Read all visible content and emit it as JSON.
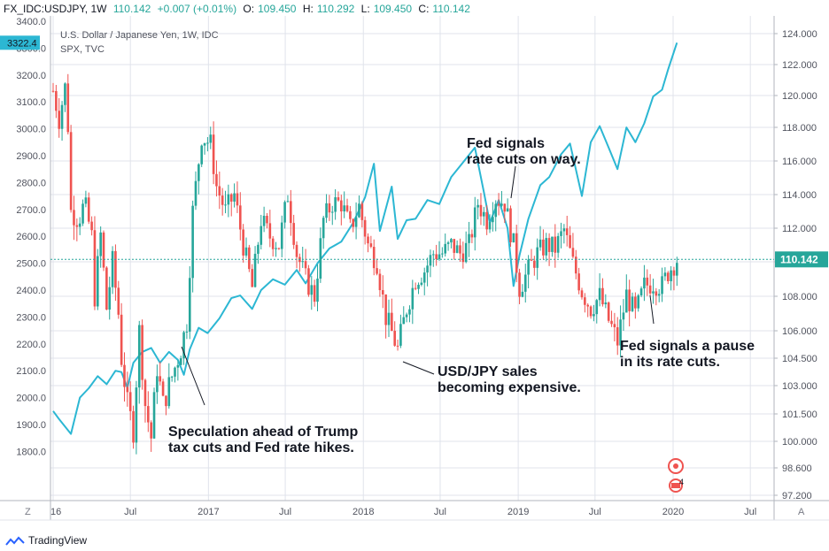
{
  "header": {
    "symbol": "FX_IDC:USDJPY, 1W",
    "last": "110.142",
    "change": "+0.007 (+0.01%)",
    "open_label": "O:",
    "open": "109.450",
    "high_label": "H:",
    "high": "110.292",
    "low_label": "L:",
    "low": "109.450",
    "close_label": "C:",
    "close": "110.142"
  },
  "legend": {
    "main_series": "U.S. Dollar / Japanese Yen, 1W, IDC",
    "compare_series": "SPX, TVC"
  },
  "colors": {
    "up": "#26a69a",
    "down": "#ef5350",
    "compare_line": "#2cb7d3",
    "price_line": "#26a69a",
    "grid": "#e0e3eb"
  },
  "chart_data": {
    "type": "candlestick",
    "x_ticks": [
      "16",
      "Jul",
      "2017",
      "Jul",
      "2018",
      "Jul",
      "2019",
      "Jul",
      "2020",
      "Jul"
    ],
    "right_axis": {
      "label_values": [
        "124.000",
        "122.000",
        "120.000",
        "118.000",
        "116.000",
        "114.000",
        "112.000",
        "110.000",
        "108.000",
        "106.000",
        "104.500",
        "103.000",
        "101.500",
        "100.000",
        "98.600",
        "97.200"
      ],
      "current_price": "110.142"
    },
    "left_axis": {
      "label_values": [
        "3400.0",
        "3300.0",
        "3200.0",
        "3100.0",
        "3000.0",
        "2900.0",
        "2800.0",
        "2700.0",
        "2600.0",
        "2500.0",
        "2400.0",
        "2300.0",
        "2200.0",
        "2100.0",
        "2000.0",
        "1900.0",
        "1800.0"
      ],
      "current_value": "3322.4"
    },
    "usdjpy_path": [
      [
        "2016-01-01",
        120.3
      ],
      [
        "2016-01-15",
        118.5
      ],
      [
        "2016-02-01",
        121.0
      ],
      [
        "2016-02-12",
        113.0
      ],
      [
        "2016-03-01",
        112.5
      ],
      [
        "2016-03-15",
        113.5
      ],
      [
        "2016-04-01",
        111.5
      ],
      [
        "2016-04-08",
        108.0
      ],
      [
        "2016-04-22",
        111.6
      ],
      [
        "2016-05-06",
        107.3
      ],
      [
        "2016-05-20",
        110.0
      ],
      [
        "2016-06-03",
        107.0
      ],
      [
        "2016-06-10",
        104.5
      ],
      [
        "2016-06-24",
        102.0
      ],
      [
        "2016-07-08",
        100.6
      ],
      [
        "2016-07-22",
        106.0
      ],
      [
        "2016-08-05",
        102.0
      ],
      [
        "2016-08-19",
        100.2
      ],
      [
        "2016-09-02",
        104.0
      ],
      [
        "2016-09-16",
        102.0
      ],
      [
        "2016-10-07",
        103.5
      ],
      [
        "2016-10-28",
        105.0
      ],
      [
        "2016-11-11",
        106.5
      ],
      [
        "2016-11-25",
        113.0
      ],
      [
        "2016-12-16",
        117.5
      ],
      [
        "2017-01-06",
        117.0
      ],
      [
        "2017-01-20",
        114.5
      ],
      [
        "2017-02-10",
        113.0
      ],
      [
        "2017-03-03",
        114.0
      ],
      [
        "2017-03-24",
        111.0
      ],
      [
        "2017-04-14",
        108.5
      ],
      [
        "2017-05-05",
        112.5
      ],
      [
        "2017-05-26",
        111.5
      ],
      [
        "2017-06-16",
        111.0
      ],
      [
        "2017-07-07",
        114.0
      ],
      [
        "2017-07-28",
        110.5
      ],
      [
        "2017-08-18",
        109.0
      ],
      [
        "2017-09-08",
        108.0
      ],
      [
        "2017-09-29",
        112.5
      ],
      [
        "2017-10-20",
        113.5
      ],
      [
        "2017-11-10",
        113.5
      ],
      [
        "2017-12-01",
        112.0
      ],
      [
        "2017-12-22",
        113.3
      ],
      [
        "2018-01-12",
        111.0
      ],
      [
        "2018-02-02",
        110.0
      ],
      [
        "2018-02-23",
        106.8
      ],
      [
        "2018-03-23",
        105.0
      ],
      [
        "2018-04-13",
        107.3
      ],
      [
        "2018-05-04",
        109.0
      ],
      [
        "2018-05-25",
        109.5
      ],
      [
        "2018-06-15",
        110.5
      ],
      [
        "2018-07-06",
        110.5
      ],
      [
        "2018-07-27",
        111.0
      ],
      [
        "2018-08-17",
        110.5
      ],
      [
        "2018-09-07",
        111.0
      ],
      [
        "2018-09-28",
        113.5
      ],
      [
        "2018-10-19",
        112.5
      ],
      [
        "2018-11-09",
        113.8
      ],
      [
        "2018-11-30",
        113.5
      ],
      [
        "2018-12-21",
        111.0
      ],
      [
        "2019-01-04",
        108.5
      ],
      [
        "2019-01-25",
        109.5
      ],
      [
        "2019-02-15",
        110.5
      ],
      [
        "2019-03-08",
        111.0
      ],
      [
        "2019-03-29",
        110.8
      ],
      [
        "2019-04-19",
        111.9
      ],
      [
        "2019-05-10",
        109.9
      ],
      [
        "2019-05-31",
        108.3
      ],
      [
        "2019-06-21",
        107.3
      ],
      [
        "2019-07-12",
        108.0
      ],
      [
        "2019-08-02",
        106.6
      ],
      [
        "2019-08-23",
        105.4
      ],
      [
        "2019-09-13",
        108.1
      ],
      [
        "2019-10-04",
        106.9
      ],
      [
        "2019-10-25",
        108.6
      ],
      [
        "2019-11-15",
        108.8
      ],
      [
        "2019-12-06",
        108.6
      ],
      [
        "2019-12-20",
        109.4
      ],
      [
        "2020-01-10",
        110.14
      ]
    ],
    "spx_path": [
      [
        "2016-01-01",
        1950
      ],
      [
        "2016-01-15",
        1920
      ],
      [
        "2016-02-12",
        1865
      ],
      [
        "2016-03-04",
        2000
      ],
      [
        "2016-03-25",
        2035
      ],
      [
        "2016-04-15",
        2080
      ],
      [
        "2016-05-06",
        2050
      ],
      [
        "2016-05-27",
        2100
      ],
      [
        "2016-06-10",
        2095
      ],
      [
        "2016-06-24",
        2037
      ],
      [
        "2016-07-08",
        2130
      ],
      [
        "2016-07-29",
        2170
      ],
      [
        "2016-08-19",
        2185
      ],
      [
        "2016-09-09",
        2130
      ],
      [
        "2016-09-30",
        2170
      ],
      [
        "2016-10-21",
        2140
      ],
      [
        "2016-11-04",
        2085
      ],
      [
        "2016-11-18",
        2180
      ],
      [
        "2016-12-09",
        2260
      ],
      [
        "2016-12-30",
        2240
      ],
      [
        "2017-01-27",
        2295
      ],
      [
        "2017-02-24",
        2370
      ],
      [
        "2017-03-17",
        2380
      ],
      [
        "2017-04-14",
        2330
      ],
      [
        "2017-05-05",
        2400
      ],
      [
        "2017-06-02",
        2440
      ],
      [
        "2017-06-30",
        2420
      ],
      [
        "2017-07-28",
        2475
      ],
      [
        "2017-08-18",
        2425
      ],
      [
        "2017-09-15",
        2500
      ],
      [
        "2017-10-13",
        2555
      ],
      [
        "2017-11-10",
        2580
      ],
      [
        "2017-12-08",
        2650
      ],
      [
        "2018-01-05",
        2745
      ],
      [
        "2018-01-26",
        2870
      ],
      [
        "2018-02-09",
        2620
      ],
      [
        "2018-03-09",
        2785
      ],
      [
        "2018-03-23",
        2590
      ],
      [
        "2018-04-13",
        2660
      ],
      [
        "2018-05-04",
        2665
      ],
      [
        "2018-06-01",
        2735
      ],
      [
        "2018-06-29",
        2720
      ],
      [
        "2018-07-27",
        2820
      ],
      [
        "2018-08-24",
        2875
      ],
      [
        "2018-09-21",
        2930
      ],
      [
        "2018-10-12",
        2765
      ],
      [
        "2018-10-26",
        2650
      ],
      [
        "2018-11-16",
        2735
      ],
      [
        "2018-12-07",
        2630
      ],
      [
        "2018-12-21",
        2415
      ],
      [
        "2019-01-04",
        2530
      ],
      [
        "2019-01-25",
        2665
      ],
      [
        "2019-02-22",
        2790
      ],
      [
        "2019-03-15",
        2820
      ],
      [
        "2019-04-12",
        2905
      ],
      [
        "2019-05-03",
        2945
      ],
      [
        "2019-05-31",
        2750
      ],
      [
        "2019-06-21",
        2950
      ],
      [
        "2019-07-12",
        3010
      ],
      [
        "2019-08-02",
        2930
      ],
      [
        "2019-08-23",
        2850
      ],
      [
        "2019-09-13",
        3005
      ],
      [
        "2019-10-04",
        2950
      ],
      [
        "2019-10-25",
        3020
      ],
      [
        "2019-11-15",
        3120
      ],
      [
        "2019-12-06",
        3145
      ],
      [
        "2019-12-20",
        3220
      ],
      [
        "2020-01-10",
        3320
      ]
    ]
  },
  "annotations": [
    {
      "text_lines": [
        "Fed signals",
        "rate cuts on way."
      ]
    },
    {
      "text_lines": [
        "Fed signals a pause",
        "in its rate cuts."
      ]
    },
    {
      "text_lines": [
        "USD/JPY sales",
        "becoming expensive."
      ]
    },
    {
      "text_lines": [
        "Speculation ahead of Trump",
        "tax cuts and Fed rate hikes."
      ]
    }
  ],
  "footer": {
    "left_button": "Z",
    "right_button": "A",
    "brand": "TradingView"
  },
  "markers": {
    "event_count": "4"
  }
}
